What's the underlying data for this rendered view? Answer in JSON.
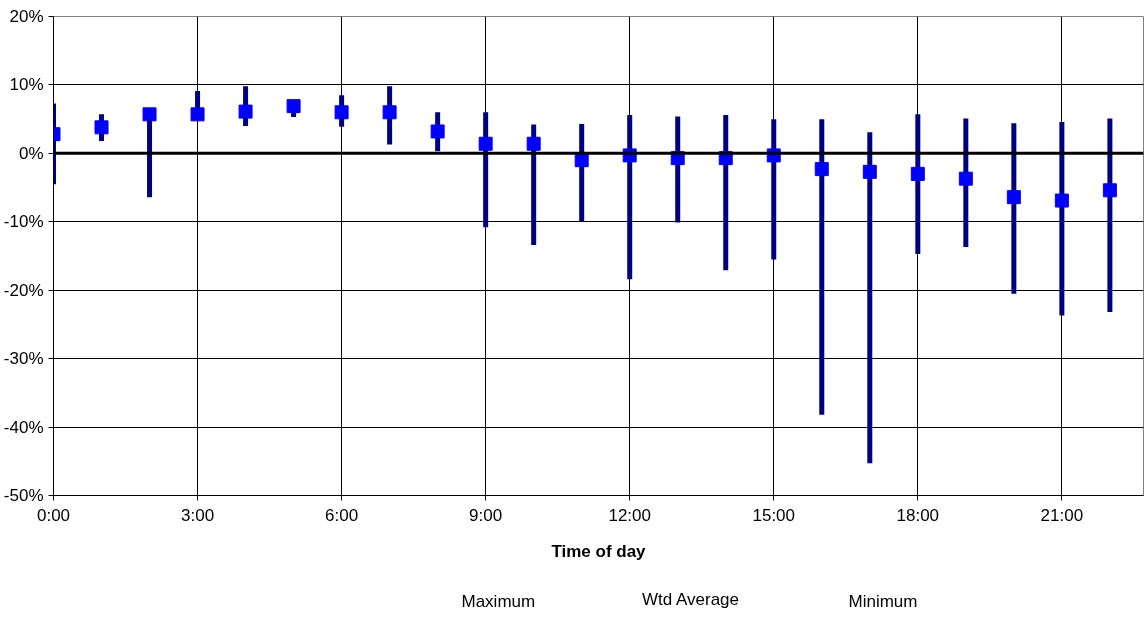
{
  "chart_data": {
    "type": "scatter",
    "xlabel": "Time of day",
    "x": [
      0,
      1,
      2,
      3,
      4,
      5,
      6,
      7,
      8,
      9,
      10,
      11,
      12,
      13,
      14,
      15,
      16,
      17,
      18,
      19,
      20,
      21,
      22
    ],
    "series": [
      {
        "name": "Wtd Average",
        "color": "#0000ff",
        "values": [
          2.8,
          3.8,
          5.7,
          5.7,
          6.1,
          6.9,
          6.0,
          6.0,
          3.2,
          1.4,
          1.4,
          -1.0,
          -0.3,
          -0.7,
          -0.7,
          -0.3,
          -2.3,
          -2.7,
          -3.0,
          -3.7,
          -6.4,
          -6.9,
          -5.4
        ],
        "errors": [
          [
            -4.5,
            7.3
          ],
          [
            1.8,
            5.7
          ],
          [
            -6.4,
            5.7
          ],
          [
            5.0,
            9.1
          ],
          [
            4.0,
            9.8
          ],
          [
            5.3,
            7.7
          ],
          [
            3.9,
            8.5
          ],
          [
            1.3,
            9.8
          ],
          [
            0.3,
            6.0
          ],
          [
            -10.8,
            6.0
          ],
          [
            -13.4,
            4.2
          ],
          [
            -10.0,
            4.3
          ],
          [
            -18.4,
            5.6
          ],
          [
            -10.1,
            5.4
          ],
          [
            -17.1,
            5.6
          ],
          [
            -15.5,
            5.0
          ],
          [
            -38.2,
            5.0
          ],
          [
            -45.3,
            3.1
          ],
          [
            -14.7,
            5.7
          ],
          [
            -13.7,
            5.1
          ],
          [
            -20.5,
            4.4
          ],
          [
            -23.7,
            4.6
          ],
          [
            -23.2,
            5.1
          ]
        ]
      }
    ],
    "annotations": [
      "Maximum",
      "Minimum"
    ],
    "marker": "square",
    "xlim": [
      0,
      22.7
    ],
    "xticks": [
      {
        "value": 0,
        "label": "0:00"
      },
      {
        "value": 3,
        "label": "3:00"
      },
      {
        "value": 6,
        "label": "6:00"
      },
      {
        "value": 9,
        "label": "9:00"
      },
      {
        "value": 12,
        "label": "12:00"
      },
      {
        "value": 15,
        "label": "15:00"
      },
      {
        "value": 18,
        "label": "18:00"
      },
      {
        "value": 21,
        "label": "21:00"
      }
    ],
    "ylim": [
      -50,
      20
    ],
    "yticks": [
      {
        "value": -50,
        "label": "-50%"
      },
      {
        "value": -40,
        "label": "-40%"
      },
      {
        "value": -30,
        "label": "-30%"
      },
      {
        "value": -20,
        "label": "-20%"
      },
      {
        "value": -10,
        "label": "-10%"
      },
      {
        "value": 0,
        "label": "0%"
      },
      {
        "value": 10,
        "label": "10%"
      },
      {
        "value": 20,
        "label": "20%"
      }
    ],
    "ref_lines": [
      {
        "axis": "y",
        "value": 0,
        "color": "#000000"
      }
    ],
    "grid": true,
    "legend": "bottom"
  }
}
